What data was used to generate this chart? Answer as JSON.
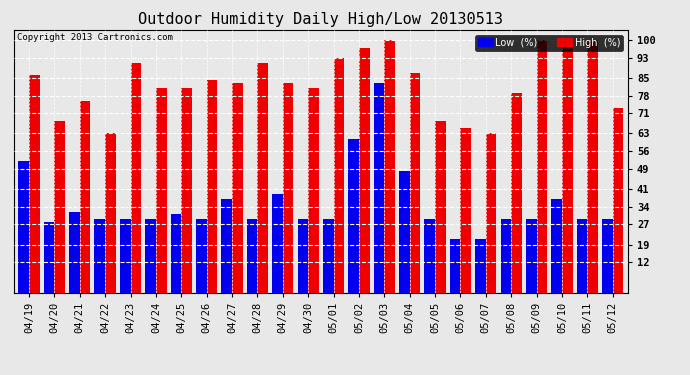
{
  "title": "Outdoor Humidity Daily High/Low 20130513",
  "copyright": "Copyright 2013 Cartronics.com",
  "dates": [
    "04/19",
    "04/20",
    "04/21",
    "04/22",
    "04/23",
    "04/24",
    "04/25",
    "04/26",
    "04/27",
    "04/28",
    "04/29",
    "04/30",
    "05/01",
    "05/02",
    "05/03",
    "05/04",
    "05/05",
    "05/06",
    "05/07",
    "05/08",
    "05/09",
    "05/10",
    "05/11",
    "05/12"
  ],
  "high": [
    86,
    68,
    76,
    63,
    91,
    81,
    81,
    84,
    83,
    91,
    83,
    81,
    93,
    97,
    100,
    87,
    68,
    65,
    63,
    79,
    100,
    100,
    100,
    73
  ],
  "low": [
    52,
    28,
    32,
    29,
    29,
    29,
    31,
    29,
    37,
    29,
    39,
    29,
    29,
    61,
    83,
    48,
    29,
    21,
    21,
    29,
    29,
    37,
    29,
    29
  ],
  "bar_width": 0.42,
  "low_color": "#0000ee",
  "high_color": "#ee0000",
  "bg_color": "#e8e8e8",
  "plot_bg_color": "#e8e8e8",
  "grid_color": "#ffffff",
  "yticks": [
    12,
    19,
    27,
    34,
    41,
    49,
    56,
    63,
    71,
    78,
    85,
    93,
    100
  ],
  "ymin": 0,
  "ymax": 104,
  "title_fontsize": 11,
  "tick_fontsize": 7.5,
  "legend_low_label": "Low  (%)",
  "legend_high_label": "High  (%)"
}
